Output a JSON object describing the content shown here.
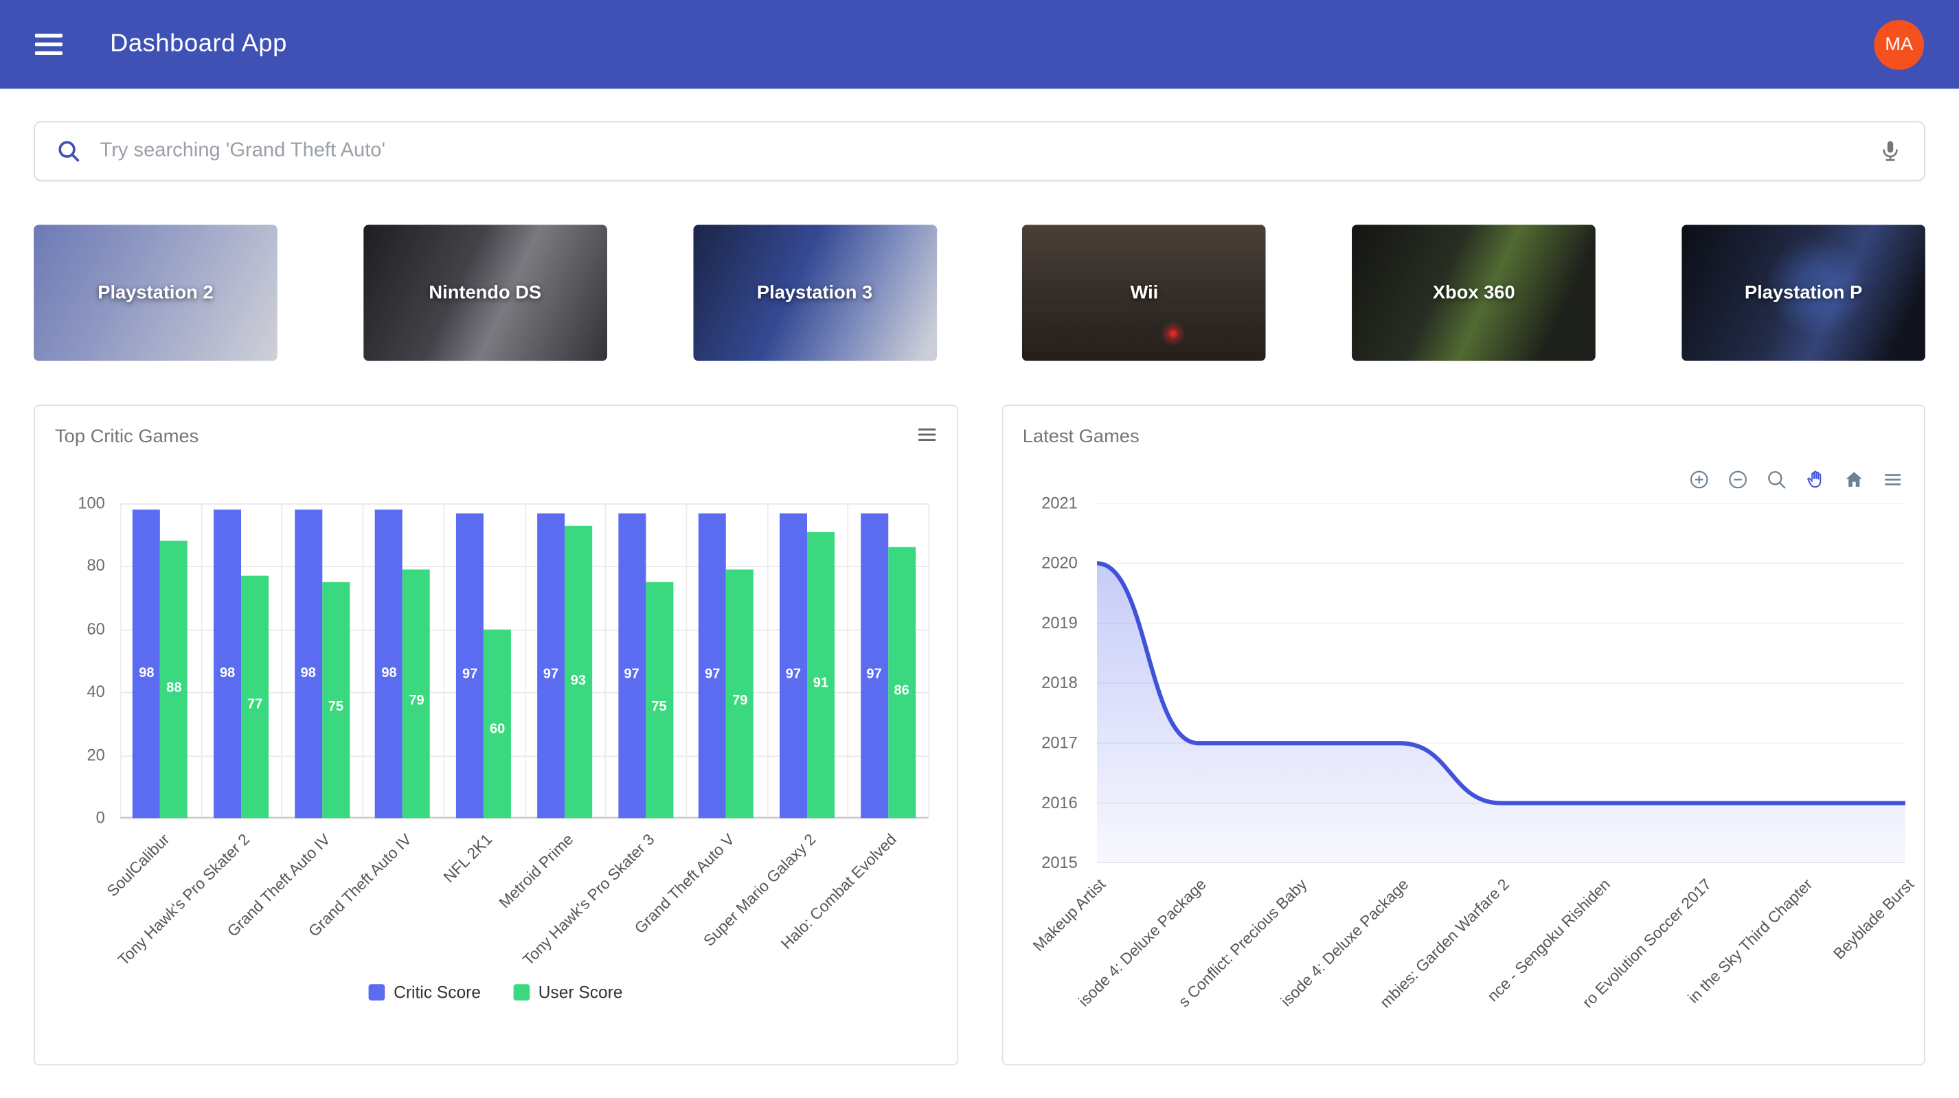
{
  "app": {
    "title": "Dashboard App",
    "avatar_initials": "MA"
  },
  "search": {
    "placeholder": "Try searching 'Grand Theft Auto'"
  },
  "consoles": [
    {
      "label": "Playstation 2"
    },
    {
      "label": "Nintendo DS"
    },
    {
      "label": "Playstation 3"
    },
    {
      "label": "Wii"
    },
    {
      "label": "Xbox 360"
    },
    {
      "label": "Playstation P"
    }
  ],
  "colors": {
    "app_bar": "#3f51b5",
    "avatar_bg": "#f4511e",
    "critic_score": "#5b6cf0",
    "user_score": "#3bd97f",
    "line": "#4152d9",
    "search_icon": "#3f51b5"
  },
  "chart_data": [
    {
      "type": "bar",
      "title": "Top Critic Games",
      "categories": [
        "SoulCalibur",
        "Tony Hawk's Pro Skater 2",
        "Grand Theft Auto IV",
        "Grand Theft Auto IV",
        "NFL 2K1",
        "Metroid Prime",
        "Tony Hawk's Pro Skater 3",
        "Grand Theft Auto V",
        "Super Mario Galaxy 2",
        "Halo: Combat Evolved"
      ],
      "series": [
        {
          "name": "Critic Score",
          "color": "#5b6cf0",
          "values": [
            98,
            98,
            98,
            98,
            97,
            97,
            97,
            97,
            97,
            97
          ]
        },
        {
          "name": "User Score",
          "color": "#3bd97f",
          "values": [
            88,
            77,
            75,
            79,
            60,
            93,
            75,
            79,
            91,
            86
          ]
        }
      ],
      "ylim": [
        0,
        100
      ],
      "yticks": [
        0,
        20,
        40,
        60,
        80,
        100
      ],
      "legend_position": "bottom",
      "grid": true,
      "value_labels": true
    },
    {
      "type": "area",
      "title": "Latest Games",
      "categories": [
        "Makeup Artist",
        "isode 4: Deluxe Package",
        "s Conflict: Precious Baby",
        "isode 4: Deluxe Package",
        "mbies: Garden Warfare 2",
        "nce - Sengoku Rishiden",
        "ro Evolution Soccer 2017",
        "in the Sky Third Chapter",
        "Beyblade Burst"
      ],
      "values": [
        2020,
        2017,
        2017,
        2017,
        2016,
        2016,
        2016,
        2016,
        2016
      ],
      "ylim": [
        2015,
        2021
      ],
      "yticks": [
        2021,
        2020,
        2019,
        2018,
        2017,
        2016,
        2015
      ],
      "line_color": "#4152d9",
      "fill_color": "#6a79ee",
      "toolbar": [
        "zoom-in",
        "zoom-out",
        "selection-zoom",
        "pan",
        "home",
        "menu"
      ],
      "toolbar_active": "pan",
      "grid": true,
      "legend_position": "none"
    }
  ]
}
